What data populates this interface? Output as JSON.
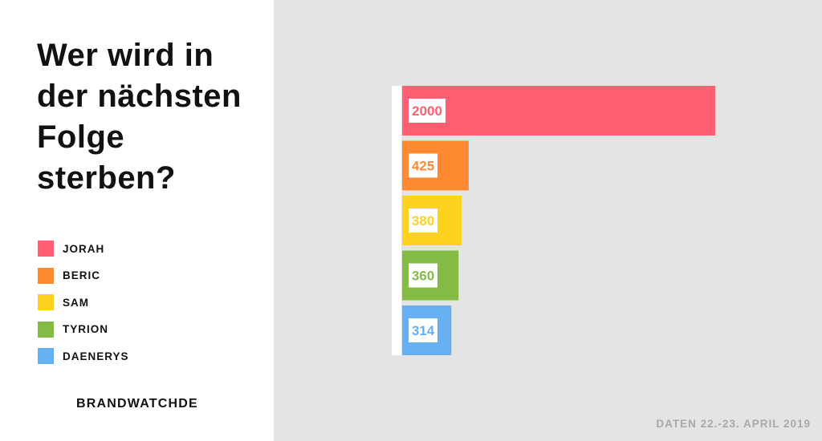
{
  "title": "Wer wird in der nächsten Folge sterben?",
  "brand": "BRANDWATCHDE",
  "source": "DATEN 22.-23. APRIL 2019",
  "chart_data": {
    "type": "bar",
    "orientation": "horizontal",
    "title": "Wer wird in der nächsten Folge sterben?",
    "categories": [
      "JORAH",
      "BERIC",
      "SAM",
      "TYRION",
      "DAENERYS"
    ],
    "values": [
      2000,
      425,
      380,
      360,
      314
    ],
    "colors": [
      "#ff5f73",
      "#ff8a32",
      "#ffd21f",
      "#84bb44",
      "#66b0f2"
    ],
    "data_labels": [
      "2000",
      "425",
      "380",
      "360",
      "314"
    ],
    "legend": [
      "JORAH",
      "BERIC",
      "SAM",
      "TYRION",
      "DAENERYS"
    ],
    "legend_placement": "left",
    "xlim": [
      0,
      2000
    ],
    "grid": false
  }
}
